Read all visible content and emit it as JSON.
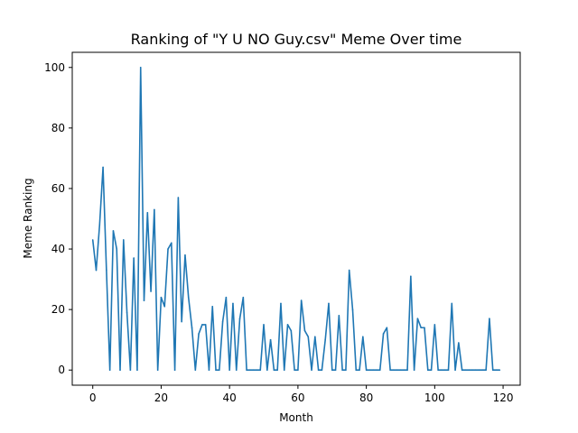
{
  "chart_data": {
    "type": "line",
    "title": "Ranking of \"Y U NO Guy.csv\" Meme Over time",
    "xlabel": "Month",
    "ylabel": "Meme Ranking",
    "xlim": [
      -6,
      125
    ],
    "ylim": [
      -5,
      105
    ],
    "xticks": [
      0,
      20,
      40,
      60,
      80,
      100,
      120
    ],
    "yticks": [
      0,
      20,
      40,
      60,
      80,
      100
    ],
    "grid": false,
    "line_color": "#1f77b4",
    "x": [
      0,
      1,
      2,
      3,
      4,
      5,
      6,
      7,
      8,
      9,
      10,
      11,
      12,
      13,
      14,
      15,
      16,
      17,
      18,
      19,
      20,
      21,
      22,
      23,
      24,
      25,
      26,
      27,
      28,
      29,
      30,
      31,
      32,
      33,
      34,
      35,
      36,
      37,
      38,
      39,
      40,
      41,
      42,
      43,
      44,
      45,
      46,
      47,
      48,
      49,
      50,
      51,
      52,
      53,
      54,
      55,
      56,
      57,
      58,
      59,
      60,
      61,
      62,
      63,
      64,
      65,
      66,
      67,
      68,
      69,
      70,
      71,
      72,
      73,
      74,
      75,
      76,
      77,
      78,
      79,
      80,
      81,
      82,
      83,
      84,
      85,
      86,
      87,
      88,
      89,
      90,
      91,
      92,
      93,
      94,
      95,
      96,
      97,
      98,
      99,
      100,
      101,
      102,
      103,
      104,
      105,
      106,
      107,
      108,
      109,
      110,
      111,
      112,
      113,
      114,
      115,
      116,
      117,
      118,
      119
    ],
    "values": [
      43,
      33,
      48,
      67,
      33,
      0,
      46,
      40,
      0,
      43,
      19,
      0,
      37,
      0,
      100,
      23,
      52,
      26,
      53,
      0,
      24,
      21,
      40,
      42,
      0,
      57,
      16,
      38,
      24,
      14,
      0,
      12,
      15,
      15,
      0,
      21,
      0,
      0,
      16,
      24,
      0,
      22,
      0,
      17,
      24,
      0,
      0,
      0,
      0,
      0,
      15,
      0,
      10,
      0,
      0,
      22,
      0,
      15,
      13,
      0,
      0,
      23,
      13,
      11,
      0,
      11,
      0,
      0,
      10,
      22,
      0,
      0,
      18,
      0,
      0,
      33,
      20,
      0,
      0,
      11,
      0,
      0,
      0,
      0,
      0,
      12,
      14,
      0,
      0,
      0,
      0,
      0,
      0,
      31,
      0,
      17,
      14,
      14,
      0,
      0,
      15,
      0,
      0,
      0,
      0,
      22,
      0,
      9,
      0,
      0,
      0,
      0,
      0,
      0,
      0,
      0,
      17,
      0,
      0,
      0
    ]
  }
}
